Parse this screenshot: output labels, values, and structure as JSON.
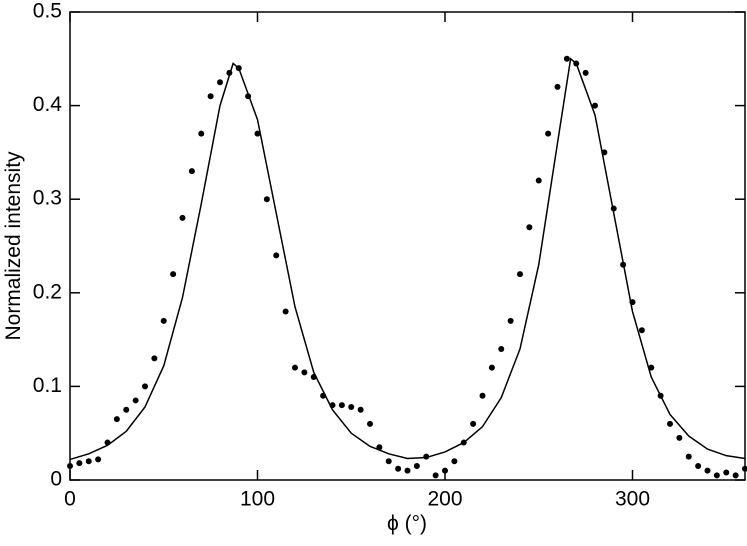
{
  "chart_data": {
    "type": "scatter",
    "x_label": "ϕ (°)",
    "y_label": "Normalized intensity",
    "xlim": [
      0,
      360
    ],
    "xticks": [
      0,
      100,
      200,
      300
    ],
    "ylim": [
      0,
      0.5
    ],
    "yticks": [
      0,
      0.1,
      0.2,
      0.3,
      0.4,
      0.5
    ],
    "series": [
      {
        "type": "scatter",
        "color": "#000000",
        "x": [
          0,
          5,
          10,
          15,
          20,
          25,
          30,
          35,
          40,
          45,
          50,
          55,
          60,
          65,
          70,
          75,
          80,
          85,
          90,
          95,
          100,
          105,
          110,
          115,
          120,
          125,
          130,
          135,
          140,
          145,
          150,
          155,
          160,
          165,
          170,
          175,
          180,
          185,
          190,
          195,
          200,
          205,
          210,
          215,
          220,
          225,
          230,
          235,
          240,
          245,
          250,
          255,
          260,
          265,
          270,
          275,
          280,
          285,
          290,
          295,
          300,
          305,
          310,
          315,
          320,
          325,
          330,
          335,
          340,
          345,
          350,
          355,
          360
        ],
        "values": [
          0.015,
          0.018,
          0.02,
          0.022,
          0.04,
          0.065,
          0.075,
          0.085,
          0.1,
          0.13,
          0.17,
          0.22,
          0.28,
          0.33,
          0.37,
          0.41,
          0.425,
          0.435,
          0.44,
          0.41,
          0.37,
          0.3,
          0.24,
          0.18,
          0.12,
          0.115,
          0.11,
          0.09,
          0.08,
          0.08,
          0.078,
          0.075,
          0.06,
          0.035,
          0.02,
          0.012,
          0.01,
          0.015,
          0.025,
          0.005,
          0.01,
          0.02,
          0.04,
          0.06,
          0.09,
          0.12,
          0.14,
          0.17,
          0.22,
          0.27,
          0.32,
          0.37,
          0.42,
          0.45,
          0.445,
          0.435,
          0.4,
          0.35,
          0.29,
          0.23,
          0.19,
          0.16,
          0.12,
          0.09,
          0.06,
          0.045,
          0.025,
          0.015,
          0.01,
          0.005,
          0.008,
          0.005,
          0.012
        ]
      },
      {
        "type": "line",
        "color": "#000000",
        "x": [
          0,
          10,
          20,
          30,
          40,
          50,
          60,
          70,
          80,
          87,
          90,
          100,
          110,
          120,
          130,
          140,
          150,
          160,
          170,
          180,
          190,
          200,
          210,
          220,
          230,
          240,
          250,
          260,
          267,
          270,
          280,
          290,
          300,
          310,
          320,
          330,
          340,
          350,
          360
        ],
        "values": [
          0.022,
          0.028,
          0.037,
          0.052,
          0.078,
          0.122,
          0.195,
          0.295,
          0.4,
          0.445,
          0.44,
          0.385,
          0.285,
          0.185,
          0.115,
          0.075,
          0.05,
          0.036,
          0.028,
          0.023,
          0.024,
          0.03,
          0.04,
          0.057,
          0.088,
          0.14,
          0.23,
          0.36,
          0.45,
          0.445,
          0.39,
          0.285,
          0.18,
          0.11,
          0.07,
          0.047,
          0.033,
          0.026,
          0.023
        ]
      }
    ]
  }
}
